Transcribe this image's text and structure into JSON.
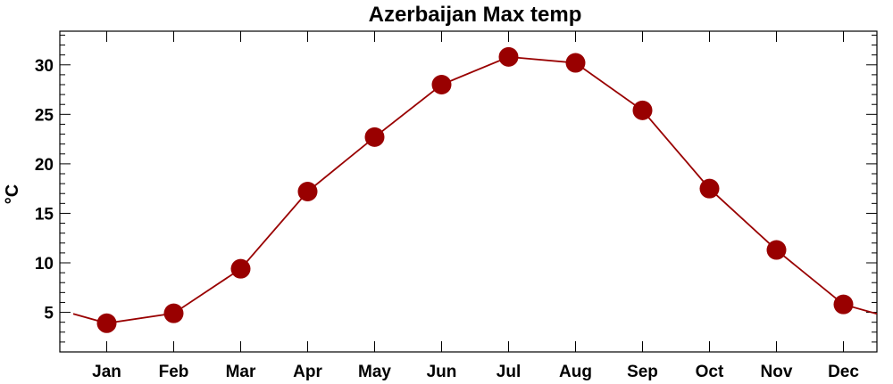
{
  "chart_data": {
    "type": "line",
    "title": "Azerbaijan Max temp",
    "xlabel": "",
    "ylabel": "°C",
    "categories": [
      "Jan",
      "Feb",
      "Mar",
      "Apr",
      "May",
      "Jun",
      "Jul",
      "Aug",
      "Sep",
      "Oct",
      "Nov",
      "Dec"
    ],
    "series": [
      {
        "values": [
          3.9,
          4.9,
          9.4,
          17.2,
          22.7,
          28.0,
          30.8,
          30.2,
          25.4,
          17.5,
          11.3,
          5.8
        ]
      }
    ],
    "yticks": [
      5,
      10,
      15,
      20,
      25,
      30
    ],
    "ylim": [
      1,
      33.4
    ],
    "grid": false,
    "legend": "none",
    "line_color": "#990000",
    "marker_color": "#990000"
  }
}
